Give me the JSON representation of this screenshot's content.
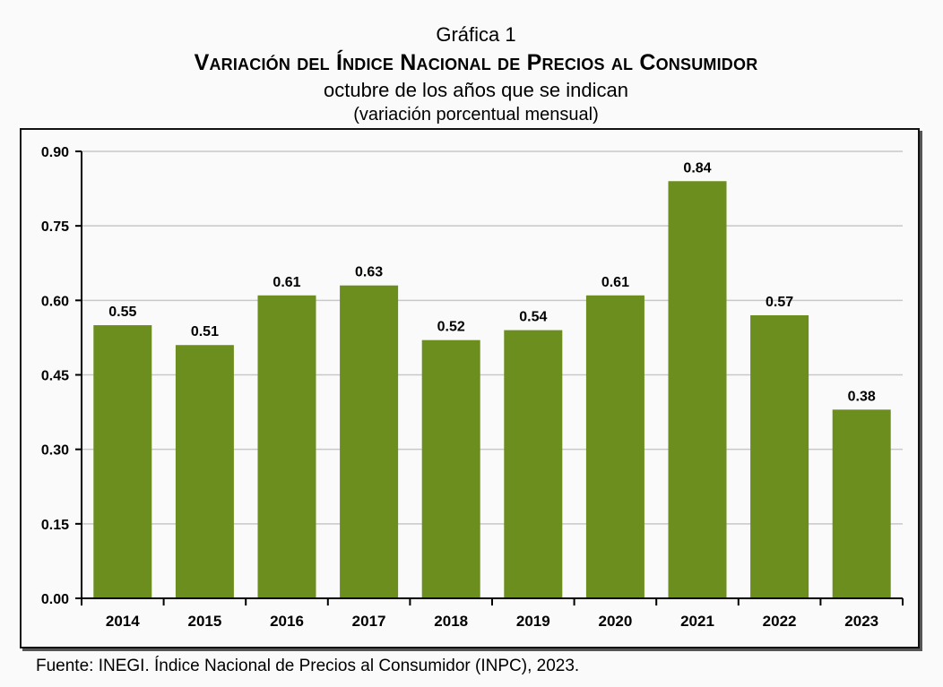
{
  "chart_data": {
    "type": "bar",
    "label": "Gráfica 1",
    "title": "Variación del Índice Nacional de Precios al Consumidor",
    "subtitle": "octubre de los años que se indican",
    "unit_note": "(variación porcentual mensual)",
    "categories": [
      "2014",
      "2015",
      "2016",
      "2017",
      "2018",
      "2019",
      "2020",
      "2021",
      "2022",
      "2023"
    ],
    "values": [
      0.55,
      0.51,
      0.61,
      0.63,
      0.52,
      0.54,
      0.61,
      0.84,
      0.57,
      0.38
    ],
    "value_labels": [
      "0.55",
      "0.51",
      "0.61",
      "0.63",
      "0.52",
      "0.54",
      "0.61",
      "0.84",
      "0.57",
      "0.38"
    ],
    "ylim": [
      0,
      0.9
    ],
    "yticks": [
      "0.00",
      "0.15",
      "0.30",
      "0.45",
      "0.60",
      "0.75",
      "0.90"
    ],
    "grid": true,
    "bar_color": "#6b8e1e",
    "source_prefix": "Fuente: ",
    "source_org": "INEGI",
    "source_mid": ". Índice Nacional de Precios al Consumidor (",
    "source_abbr": "INPC",
    "source_suffix": "), 2023."
  }
}
